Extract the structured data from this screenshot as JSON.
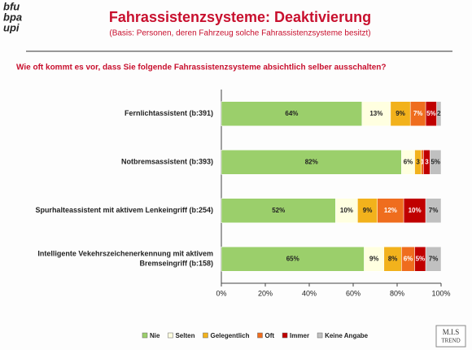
{
  "branding": {
    "logo": [
      "bfu",
      "bpa",
      "upi"
    ],
    "footer_logo": [
      "M.I.S",
      "TREND"
    ]
  },
  "chart_data": {
    "type": "stacked-barh",
    "title": "Fahrassistenzsysteme: Deaktivierung",
    "subtitle": "(Basis: Personen, deren Fahrzeug solche Fahrassistenzsysteme besitzt)",
    "question": "Wie oft kommt es vor, dass Sie folgende Fahrassistenzsysteme absichtlich selber ausschalten?",
    "categories": [
      "Fernlichtassistent (b:391)",
      "Notbremsassistent (b:393)",
      "Spurhalteassistent mit aktivem Lenkeingriff (b:254)",
      "Intelligente Vekehrszeichenerkennung mit aktivem\nBremseingriff (b:158)"
    ],
    "series": [
      {
        "name": "Nie",
        "color": "#9bcf6b",
        "values": [
          64,
          82,
          52,
          65
        ],
        "value_labels": [
          "64%",
          "82%",
          "52%",
          "65%"
        ]
      },
      {
        "name": "Selten",
        "color": "#ffffe0",
        "values": [
          13,
          6,
          10,
          9
        ],
        "value_labels": [
          "13%",
          "6%",
          "10%",
          "9%"
        ]
      },
      {
        "name": "Gelegentlich",
        "color": "#f2b21c",
        "values": [
          9,
          3,
          9,
          8
        ],
        "value_labels": [
          "9%",
          "3",
          "9%",
          "8%"
        ]
      },
      {
        "name": "Oft",
        "color": "#ef6d1e",
        "values": [
          7,
          1,
          12,
          6
        ],
        "value_labels": [
          "7%",
          "1",
          "12%",
          "6%"
        ]
      },
      {
        "name": "Immer",
        "color": "#c00000",
        "values": [
          5,
          3,
          10,
          5
        ],
        "value_labels": [
          "5%",
          "3",
          "10%",
          "5%"
        ]
      },
      {
        "name": "Keine Angabe",
        "color": "#c0c0c0",
        "values": [
          2,
          5,
          7,
          7
        ],
        "value_labels": [
          "2",
          "5%",
          "7%",
          "7%"
        ]
      }
    ],
    "xlim": [
      0,
      100
    ],
    "xticks": [
      {
        "value": 0,
        "label": "0%"
      },
      {
        "value": 20,
        "label": "20%"
      },
      {
        "value": 40,
        "label": "40%"
      },
      {
        "value": 60,
        "label": "60%"
      },
      {
        "value": 80,
        "label": "80%"
      },
      {
        "value": 100,
        "label": "100%"
      }
    ],
    "grid": false,
    "legend": "bottom"
  }
}
